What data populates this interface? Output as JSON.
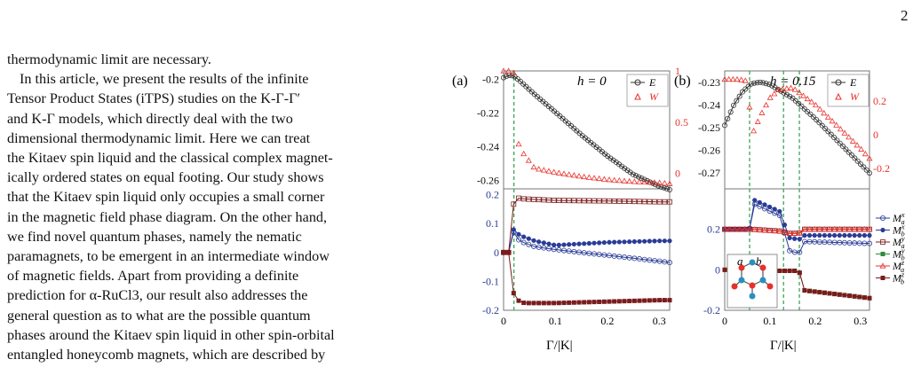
{
  "page_number": "2",
  "text": {
    "lines": [
      "thermodynamic limit are necessary.",
      "In this article, we present the results of the infinite",
      "Tensor Product States (iTPS) studies on the K-Γ-Γ′",
      "and K-Γ models, which directly deal with the two",
      "dimensional thermodynamic limit.  Here we can treat",
      "the Kitaev spin liquid and the classical complex magnet-",
      "ically ordered states on equal footing.  Our study shows",
      "that the Kitaev spin liquid only occupies a small corner",
      "in the magnetic field phase diagram. On the other hand,",
      "we find novel quantum phases, namely the nematic",
      "paramagnets, to be emergent in an intermediate window",
      "of magnetic fields.   Apart from providing a definite",
      "prediction for α-RuCl3, our result also addresses the",
      "general question as to what are the possible quantum",
      "phases around the Kitaev spin liquid in other spin-orbital",
      "entangled honeycomb magnets, which are described by"
    ]
  },
  "figure": {
    "panel_a": {
      "label": "(a)",
      "title": "h = 0",
      "top_left_ticks": [
        "-0.2",
        "-0.22",
        "-0.24",
        "-0.26"
      ],
      "top_right_ticks": [
        "1",
        "0.5",
        "0"
      ],
      "bottom_ticks": [
        "0.2",
        "0.1",
        "0",
        "-0.1",
        "-0.2"
      ],
      "x_ticks": [
        "0",
        "0.1",
        "0.2",
        "0.3"
      ],
      "legend": [
        "E",
        "W"
      ]
    },
    "panel_b": {
      "label": "(b)",
      "title": "h = 0.15",
      "top_left_ticks": [
        "-0.23",
        "-0.24",
        "-0.25",
        "-0.26",
        "-0.27"
      ],
      "top_right_ticks": [
        "0.2",
        "0",
        "-0.2"
      ],
      "bottom_ticks": [
        "0.2",
        "0",
        "-0.2"
      ],
      "x_ticks": [
        "0",
        "0.1",
        "0.2",
        "0.3"
      ],
      "legend": [
        "E",
        "W"
      ],
      "bottom_legend": [
        "M_a^x",
        "M_b^x",
        "M_a^y",
        "M_b^y",
        "M_a^z",
        "M_b^z"
      ],
      "inset_labels": [
        "a",
        "b"
      ]
    },
    "xlabel": "Γ/|K|",
    "colors": {
      "energy": "#333333",
      "w_marker": "#e8302a",
      "right_axis": "#e8302a",
      "bottom_axis": "#2a3c96",
      "vline": "#2f9e4b",
      "m_blue": "#2a3c96",
      "m_darkred": "#7a1c1c",
      "m_green": "#2e8b3b"
    }
  },
  "chart_data": [
    {
      "type": "line",
      "title": "h = 0",
      "xlabel": "Γ/|K|",
      "xlim": [
        0,
        0.32
      ],
      "series": [
        {
          "name": "E",
          "axis": "left",
          "ylim": [
            -0.265,
            -0.195
          ],
          "x": [
            0,
            0.01,
            0.02,
            0.03,
            0.06,
            0.1,
            0.15,
            0.2,
            0.25,
            0.3,
            0.32
          ],
          "y": [
            -0.199,
            -0.1975,
            -0.198,
            -0.2005,
            -0.209,
            -0.2195,
            -0.233,
            -0.2455,
            -0.2565,
            -0.2635,
            -0.2655
          ]
        },
        {
          "name": "W",
          "axis": "right",
          "ylim": [
            -0.15,
            1.0
          ],
          "x": [
            0,
            0.01,
            0.02,
            0.025,
            0.03,
            0.06,
            0.1,
            0.15,
            0.2,
            0.25,
            0.3,
            0.32
          ],
          "y": [
            1.0,
            1.0,
            0.98,
            0.45,
            0.25,
            0.05,
            0.01,
            -0.03,
            -0.06,
            -0.08,
            -0.09,
            -0.1
          ]
        }
      ]
    },
    {
      "type": "line",
      "title": "h = 0",
      "xlabel": "Γ/|K|",
      "xlim": [
        0,
        0.32
      ],
      "ylim": [
        -0.2,
        0.22
      ],
      "series": [
        {
          "x": [
            0,
            0.015,
            0.02,
            0.03,
            0.06,
            0.1,
            0.2,
            0.3,
            0.32
          ],
          "y": [
            0.0,
            0.0,
            0.08,
            0.04,
            0.02,
            0.01,
            -0.01,
            -0.03,
            -0.035
          ]
        },
        {
          "x": [
            0,
            0.015,
            0.02,
            0.03,
            0.06,
            0.1,
            0.2,
            0.3,
            0.32
          ],
          "y": [
            0.0,
            0.0,
            0.09,
            0.06,
            0.04,
            0.025,
            0.035,
            0.04,
            0.04
          ]
        },
        {
          "x": [
            0,
            0.015,
            0.02,
            0.04,
            0.1,
            0.2,
            0.3,
            0.32
          ],
          "y": [
            0.0,
            0.0,
            0.19,
            0.185,
            0.18,
            0.178,
            0.175,
            0.175
          ]
        },
        {
          "x": [
            0,
            0.015,
            0.02,
            0.04,
            0.1,
            0.2,
            0.3,
            0.32
          ],
          "y": [
            0.0,
            0.0,
            -0.16,
            -0.175,
            -0.175,
            -0.17,
            -0.165,
            -0.165
          ]
        }
      ]
    },
    {
      "type": "line",
      "title": "h = 0.15",
      "xlabel": "Γ/|K|",
      "xlim": [
        0,
        0.32
      ],
      "series": [
        {
          "name": "E",
          "axis": "left",
          "ylim": [
            -0.277,
            -0.225
          ],
          "x": [
            0,
            0.02,
            0.04,
            0.06,
            0.08,
            0.1,
            0.15,
            0.2,
            0.25,
            0.3,
            0.32
          ],
          "y": [
            -0.249,
            -0.24,
            -0.234,
            -0.2305,
            -0.23,
            -0.231,
            -0.237,
            -0.246,
            -0.256,
            -0.266,
            -0.27
          ]
        },
        {
          "name": "W",
          "axis": "right",
          "ylim": [
            -0.32,
            0.38
          ],
          "x": [
            0,
            0.03,
            0.05,
            0.06,
            0.08,
            0.1,
            0.12,
            0.15,
            0.2,
            0.25,
            0.3,
            0.32
          ],
          "y": [
            0.33,
            0.33,
            0.32,
            0.0,
            0.12,
            0.22,
            0.27,
            0.28,
            0.18,
            0.05,
            -0.08,
            -0.14
          ]
        }
      ]
    },
    {
      "type": "line",
      "title": "h = 0.15",
      "xlabel": "Γ/|K|",
      "xlim": [
        0,
        0.32
      ],
      "ylim": [
        -0.2,
        0.4
      ],
      "series": [
        {
          "name": "M_a^x",
          "x": [
            0,
            0.055,
            0.06,
            0.13,
            0.135,
            0.165,
            0.17,
            0.32
          ],
          "y": [
            0.2,
            0.2,
            0.33,
            0.26,
            0.1,
            0.08,
            0.14,
            0.13
          ]
        },
        {
          "name": "M_b^x",
          "x": [
            0,
            0.055,
            0.06,
            0.13,
            0.135,
            0.165,
            0.17,
            0.32
          ],
          "y": [
            0.2,
            0.2,
            0.35,
            0.28,
            0.16,
            0.15,
            0.17,
            0.17
          ]
        },
        {
          "name": "M_a^y",
          "x": [
            0,
            0.055,
            0.06,
            0.13,
            0.135,
            0.165,
            0.17,
            0.32
          ],
          "y": [
            0.2,
            0.2,
            0.2,
            0.19,
            0.18,
            0.18,
            0.2,
            0.2
          ]
        },
        {
          "name": "M_b^y",
          "x": [
            0,
            0.055,
            0.06,
            0.13,
            0.135,
            0.165,
            0.17,
            0.32
          ],
          "y": [
            0.0,
            0.0,
            -0.005,
            -0.005,
            -0.005,
            -0.005,
            -0.1,
            -0.14
          ]
        },
        {
          "name": "M_a^z",
          "x": [
            0,
            0.055,
            0.06,
            0.13,
            0.135,
            0.165,
            0.17,
            0.32
          ],
          "y": [
            0.2,
            0.2,
            0.2,
            0.19,
            0.18,
            0.18,
            0.2,
            0.2
          ]
        },
        {
          "name": "M_b^z",
          "x": [
            0,
            0.055,
            0.06,
            0.13,
            0.135,
            0.165,
            0.17,
            0.32
          ],
          "y": [
            0.0,
            0.0,
            -0.005,
            -0.005,
            -0.005,
            -0.005,
            -0.1,
            -0.14
          ]
        }
      ]
    }
  ]
}
